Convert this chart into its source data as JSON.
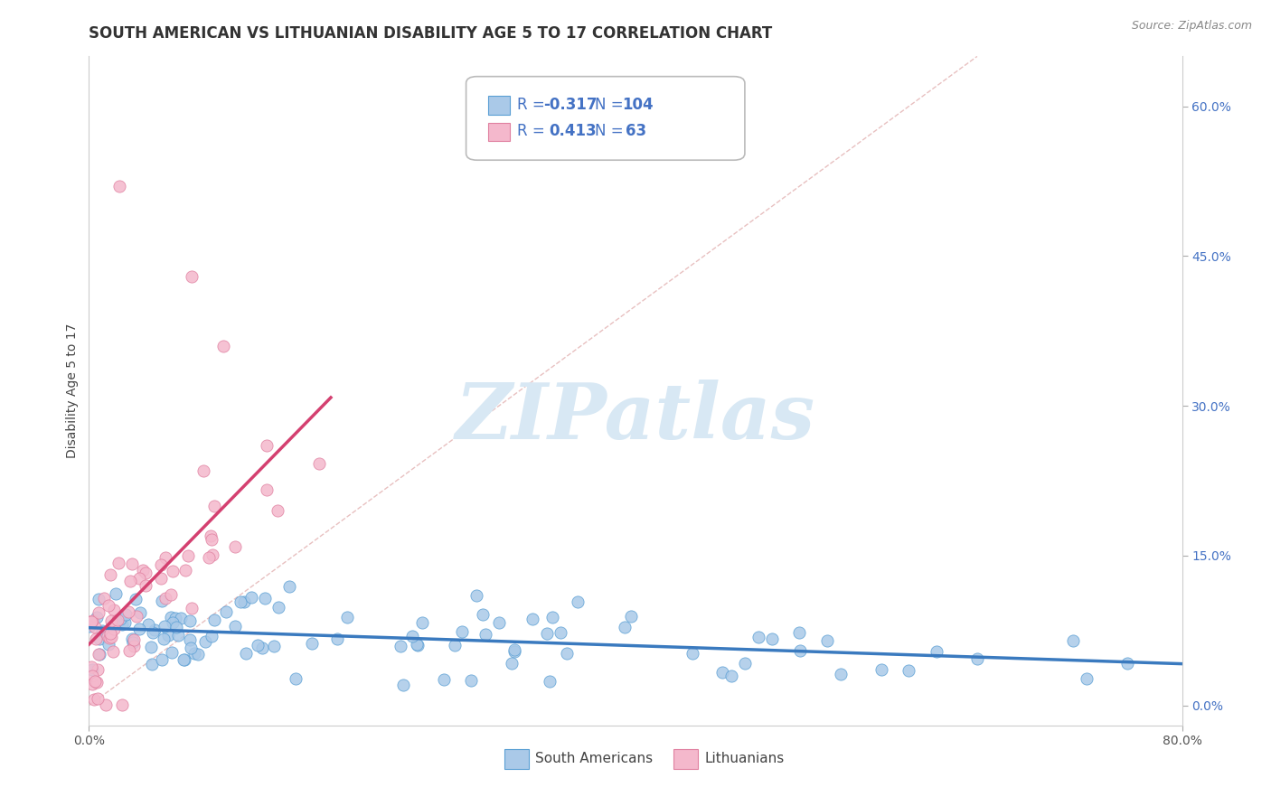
{
  "title": "SOUTH AMERICAN VS LITHUANIAN DISABILITY AGE 5 TO 17 CORRELATION CHART",
  "source": "Source: ZipAtlas.com",
  "ylabel": "Disability Age 5 to 17",
  "xlim": [
    0.0,
    0.8
  ],
  "ylim": [
    -0.02,
    0.65
  ],
  "xtick_positions": [
    0.0,
    0.8
  ],
  "xticklabels": [
    "0.0%",
    "80.0%"
  ],
  "yticks_right": [
    0.0,
    0.15,
    0.3,
    0.45,
    0.6
  ],
  "yticklabels_right": [
    "0.0%",
    "15.0%",
    "30.0%",
    "45.0%",
    "60.0%"
  ],
  "grid_color": "#cccccc",
  "background_color": "#ffffff",
  "blue_color": "#aac9e8",
  "pink_color": "#f4b8cc",
  "blue_edge_color": "#5a9fd4",
  "pink_edge_color": "#e080a0",
  "blue_line_color": "#3a7abf",
  "pink_line_color": "#d44070",
  "diagonal_color": "#e8c0c0",
  "watermark_color": "#d8e8f4",
  "legend_R_blue": "-0.317",
  "legend_N_blue": "104",
  "legend_R_pink": "0.413",
  "legend_N_pink": "63",
  "legend_label_blue": "South Americans",
  "legend_label_pink": "Lithuanians",
  "legend_text_color": "#4472c4",
  "title_fontsize": 12,
  "source_fontsize": 9,
  "tick_fontsize": 10,
  "ylabel_fontsize": 10,
  "seed": 7
}
